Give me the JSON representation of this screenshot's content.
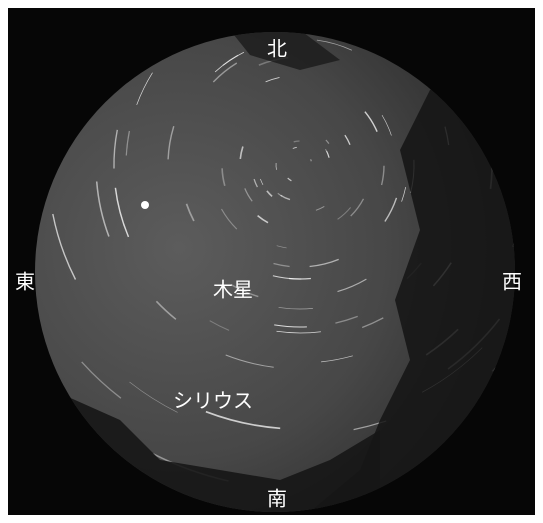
{
  "labels": {
    "north": "北",
    "east": "東",
    "west": "西",
    "south": "南",
    "jupiter": "木星",
    "sirius": "シリウス"
  }
}
